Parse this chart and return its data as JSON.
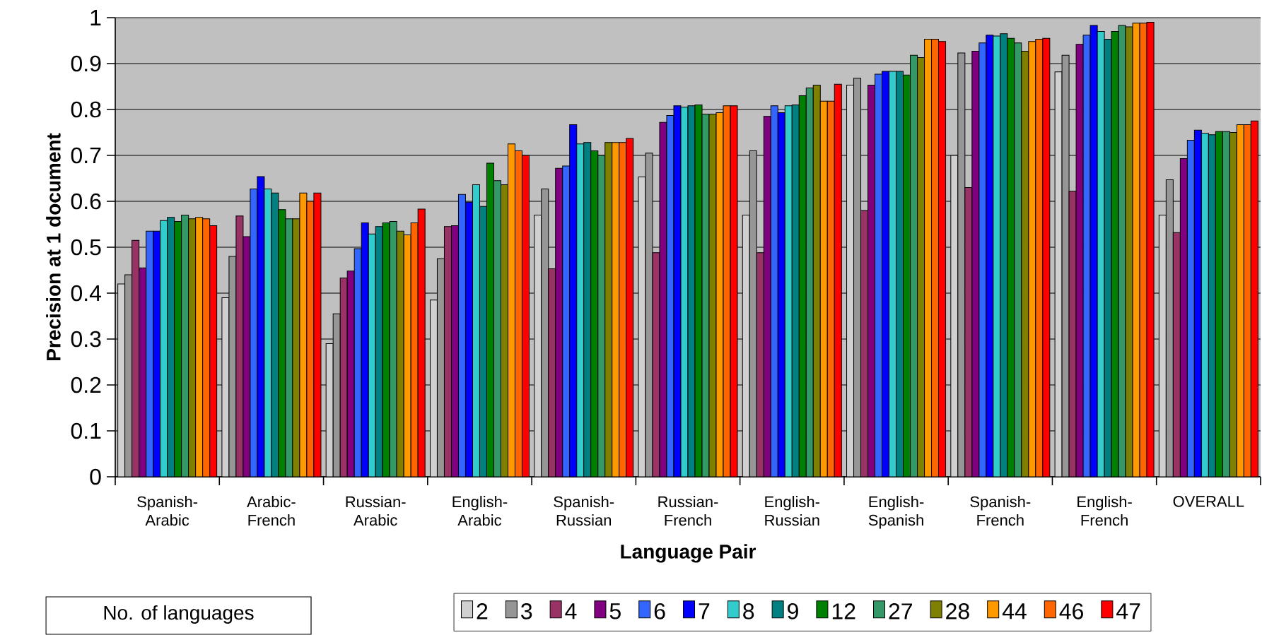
{
  "chart_data": {
    "type": "bar",
    "xlabel": "Language Pair",
    "ylabel": "Precision at 1 document",
    "legend_title": "No. of languages",
    "categories": [
      "Spanish-Arabic",
      "Arabic-French",
      "Russian-Arabic",
      "English-Arabic",
      "Spanish-Russian",
      "Russian-French",
      "English-Russian",
      "English-Spanish",
      "Spanish-French",
      "English-French",
      "OVERALL"
    ],
    "ylim": [
      0,
      1
    ],
    "yticks": [
      0,
      0.1,
      0.2,
      0.3,
      0.4,
      0.5,
      0.6,
      0.7,
      0.8,
      0.9,
      1
    ],
    "grid": "y",
    "legend": "bottom",
    "series": [
      {
        "name": "2",
        "color": "#d0d0d0",
        "values": [
          0.42,
          0.39,
          0.29,
          0.385,
          0.57,
          0.653,
          0.57,
          0.853,
          0.7,
          0.882,
          0.57
        ]
      },
      {
        "name": "3",
        "color": "#969696",
        "values": [
          0.44,
          0.48,
          0.355,
          0.475,
          0.627,
          0.705,
          0.71,
          0.868,
          0.923,
          0.918,
          0.647
        ]
      },
      {
        "name": "4",
        "color": "#993366",
        "values": [
          0.515,
          0.568,
          0.433,
          0.545,
          0.453,
          0.488,
          0.488,
          0.58,
          0.63,
          0.622,
          0.532
        ]
      },
      {
        "name": "5",
        "color": "#800080",
        "values": [
          0.455,
          0.523,
          0.448,
          0.547,
          0.672,
          0.772,
          0.785,
          0.853,
          0.927,
          0.942,
          0.693
        ]
      },
      {
        "name": "6",
        "color": "#3366ff",
        "values": [
          0.535,
          0.627,
          0.497,
          0.615,
          0.677,
          0.787,
          0.808,
          0.877,
          0.945,
          0.962,
          0.733
        ]
      },
      {
        "name": "7",
        "color": "#0000ff",
        "values": [
          0.535,
          0.654,
          0.553,
          0.598,
          0.767,
          0.808,
          0.793,
          0.883,
          0.962,
          0.983,
          0.755
        ]
      },
      {
        "name": "8",
        "color": "#33cccc",
        "values": [
          0.558,
          0.627,
          0.529,
          0.636,
          0.725,
          0.805,
          0.808,
          0.883,
          0.96,
          0.97,
          0.748
        ]
      },
      {
        "name": "9",
        "color": "#008080",
        "values": [
          0.565,
          0.618,
          0.545,
          0.589,
          0.728,
          0.808,
          0.81,
          0.883,
          0.965,
          0.953,
          0.745
        ]
      },
      {
        "name": "12",
        "color": "#008000",
        "values": [
          0.556,
          0.582,
          0.553,
          0.683,
          0.71,
          0.81,
          0.83,
          0.875,
          0.955,
          0.97,
          0.752
        ]
      },
      {
        "name": "27",
        "color": "#339966",
        "values": [
          0.57,
          0.562,
          0.556,
          0.645,
          0.7,
          0.79,
          0.847,
          0.918,
          0.945,
          0.983,
          0.752
        ]
      },
      {
        "name": "28",
        "color": "#808000",
        "values": [
          0.562,
          0.562,
          0.535,
          0.636,
          0.728,
          0.79,
          0.853,
          0.913,
          0.927,
          0.98,
          0.75
        ]
      },
      {
        "name": "44",
        "color": "#ff9900",
        "values": [
          0.565,
          0.618,
          0.527,
          0.725,
          0.728,
          0.793,
          0.818,
          0.953,
          0.948,
          0.988,
          0.767
        ]
      },
      {
        "name": "46",
        "color": "#ff6600",
        "values": [
          0.562,
          0.6,
          0.553,
          0.71,
          0.728,
          0.808,
          0.818,
          0.953,
          0.953,
          0.988,
          0.767
        ]
      },
      {
        "name": "47",
        "color": "#ff0000",
        "values": [
          0.547,
          0.618,
          0.583,
          0.7,
          0.737,
          0.808,
          0.855,
          0.948,
          0.955,
          0.99,
          0.775
        ]
      }
    ]
  }
}
